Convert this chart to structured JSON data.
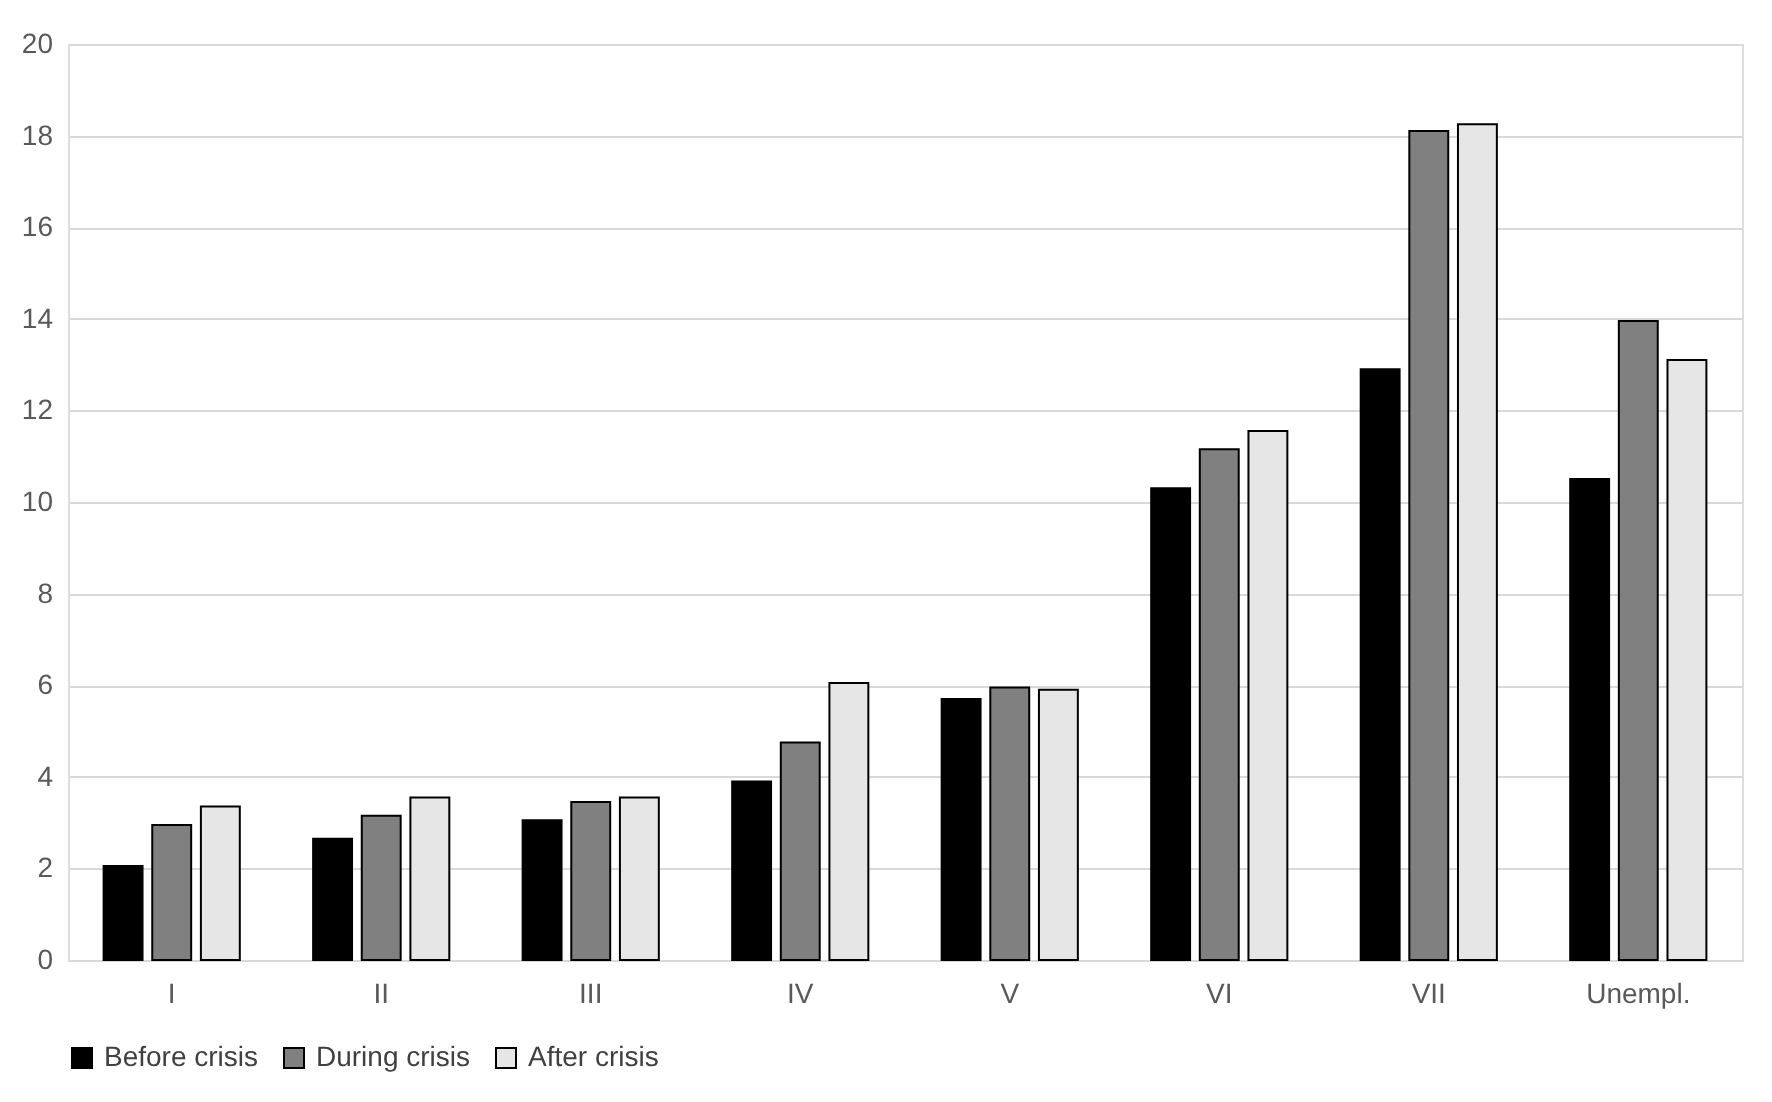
{
  "chart_data": {
    "type": "bar",
    "categories": [
      "I",
      "II",
      "III",
      "IV",
      "V",
      "VI",
      "VII",
      "Unempl."
    ],
    "series": [
      {
        "name": "Before crisis",
        "color": "#000000",
        "values": [
          2.05,
          2.65,
          3.05,
          3.9,
          5.7,
          10.3,
          12.9,
          10.5
        ]
      },
      {
        "name": "During crisis",
        "color": "#808080",
        "values": [
          2.95,
          3.15,
          3.45,
          4.75,
          5.95,
          11.15,
          18.1,
          13.95
        ]
      },
      {
        "name": "After crisis",
        "color": "#e6e6e6",
        "values": [
          3.35,
          3.55,
          3.55,
          6.05,
          5.9,
          11.55,
          18.25,
          13.1
        ]
      }
    ],
    "ylim": [
      0,
      20
    ],
    "yticks": [
      0,
      2,
      4,
      6,
      8,
      10,
      12,
      14,
      16,
      18,
      20
    ],
    "grid": "y",
    "legend": "bottom"
  }
}
